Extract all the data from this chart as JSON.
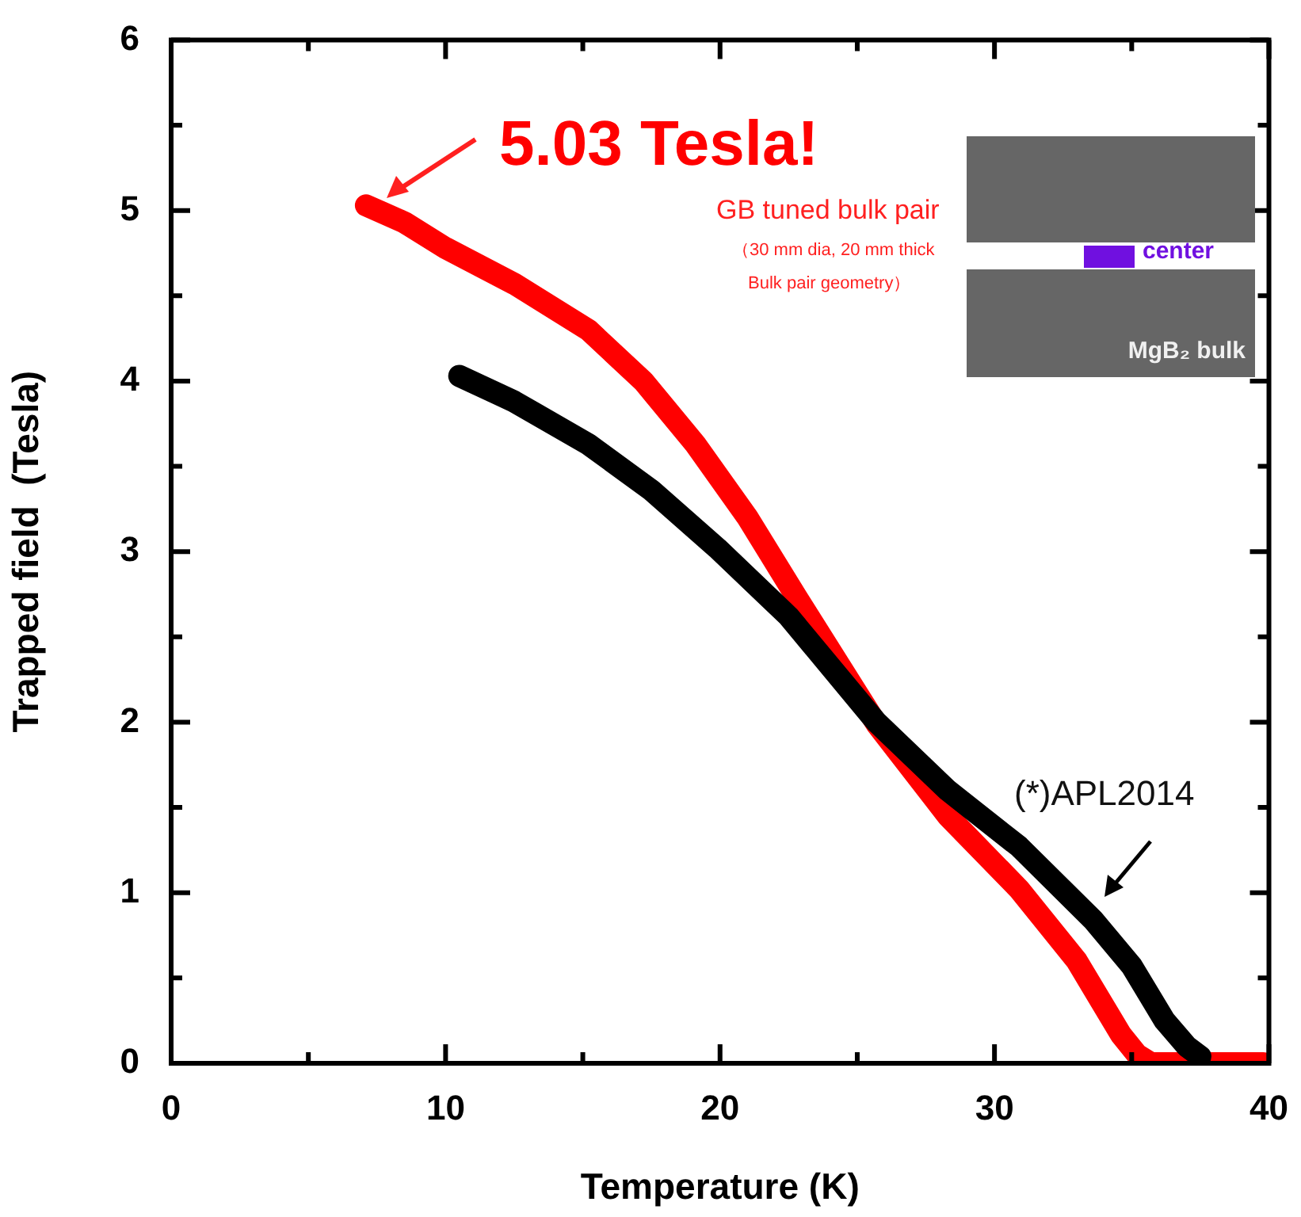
{
  "chart_data": {
    "type": "line",
    "xlabel": "Temperature (K)",
    "ylabel": "Trapped field  (Tesla)",
    "xlim": [
      0,
      40
    ],
    "xticks": [
      0,
      {
        "value": 5,
        "label": null
      },
      10,
      {
        "value": 15,
        "label": null
      },
      20,
      {
        "value": 25,
        "label": null
      },
      30,
      {
        "value": 35,
        "label": null
      },
      40
    ],
    "ylim": [
      0,
      6
    ],
    "yticks": [
      0,
      {
        "value": 0.5,
        "label": null
      },
      1,
      {
        "value": 1.5,
        "label": null
      },
      2,
      {
        "value": 2.5,
        "label": null
      },
      3,
      {
        "value": 3.5,
        "label": null
      },
      4,
      {
        "value": 4.5,
        "label": null
      },
      5,
      {
        "value": 5.5,
        "label": null
      },
      6
    ],
    "grid": false,
    "legend": false,
    "marker": "none",
    "line_style": "solid",
    "annotations": [
      "5.03 Tesla!",
      "GB tuned bulk pair",
      "（30 mm dia, 20 mm thick",
      "Bulk pair geometry）",
      "(*)APL2014",
      "center",
      "MgB₂ bulk"
    ],
    "series": [
      {
        "color": "#000000",
        "x": [
          10.5,
          12.5,
          15.2,
          17.5,
          19.9,
          22.5,
          25.7,
          28.3,
          30.9,
          33.6,
          35.0,
          36.2,
          37.0,
          37.5
        ],
        "values": [
          4.03,
          3.88,
          3.63,
          3.36,
          3.02,
          2.62,
          2.0,
          1.6,
          1.27,
          0.84,
          0.57,
          0.25,
          0.1,
          0.04
        ]
      },
      {
        "color": "#ff0000",
        "x": [
          7.1,
          8.5,
          10.0,
          12.5,
          15.2,
          17.2,
          19.1,
          21.0,
          22.8,
          25.7,
          28.3,
          30.9,
          33.0,
          34.6,
          35.2,
          35.7,
          37.0,
          38.5,
          39.8
        ],
        "values": [
          5.03,
          4.93,
          4.78,
          4.57,
          4.3,
          4.0,
          3.63,
          3.2,
          2.73,
          1.99,
          1.45,
          1.02,
          0.6,
          0.17,
          0.05,
          0.0,
          0.0,
          0.0,
          0.0
        ]
      }
    ]
  }
}
